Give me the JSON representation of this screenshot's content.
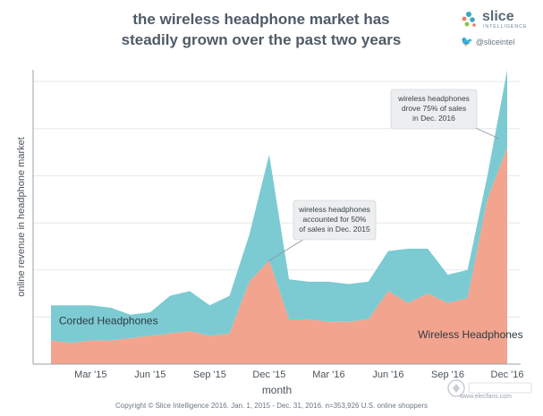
{
  "header": {
    "title_line1": "the wireless headphone market has",
    "title_line2": "steadily grown over the past two years"
  },
  "brand": {
    "name": "slice",
    "sub": "INTELLIGENCE",
    "twitter": "@sliceintel"
  },
  "footer": {
    "copyright": "Copyright © Slice Intelligence 2016. Jan. 1, 2015 - Dec. 31, 2016. n=353,926 U.S. online shoppers"
  },
  "watermark": {
    "site": "www.elecfans.com"
  },
  "chart_data": {
    "type": "area",
    "stacked": true,
    "xlabel": "month",
    "ylabel": "online revenue in headphone market",
    "x": [
      "Jan '15",
      "Feb '15",
      "Mar '15",
      "Apr '15",
      "May '15",
      "Jun '15",
      "Jul '15",
      "Aug '15",
      "Sep '15",
      "Oct '15",
      "Nov '15",
      "Dec '15",
      "Jan '16",
      "Feb '16",
      "Mar '16",
      "Apr '16",
      "May '16",
      "Jun '16",
      "Jul '16",
      "Aug '16",
      "Sep '16",
      "Oct '16",
      "Nov '16",
      "Dec '16"
    ],
    "tick_labels": [
      "Mar '15",
      "Jun '15",
      "Sep '15",
      "Dec '15",
      "Mar '16",
      "Jun '16",
      "Sep '16",
      "Dec '16"
    ],
    "tick_positions": [
      2,
      5,
      8,
      11,
      14,
      17,
      20,
      23
    ],
    "ylim": [
      0,
      6.25
    ],
    "gridlines": [
      1,
      2,
      3,
      4,
      5,
      6
    ],
    "grid": true,
    "series": [
      {
        "name": "Wireless Headphones",
        "color": "#f2a48e",
        "values": [
          0.5,
          0.45,
          0.5,
          0.5,
          0.55,
          0.6,
          0.65,
          0.7,
          0.6,
          0.65,
          1.75,
          2.2,
          0.95,
          0.95,
          0.9,
          0.9,
          0.95,
          1.55,
          1.3,
          1.5,
          1.3,
          1.4,
          3.5,
          4.6
        ]
      },
      {
        "name": "Corded Headphones",
        "color": "#7ccbd2",
        "values": [
          0.75,
          0.8,
          0.75,
          0.7,
          0.5,
          0.5,
          0.8,
          0.85,
          0.65,
          0.8,
          1.0,
          2.25,
          0.85,
          0.8,
          0.85,
          0.8,
          0.8,
          0.85,
          1.15,
          0.95,
          0.6,
          0.6,
          0.5,
          1.65
        ]
      }
    ],
    "series_labels": [
      {
        "name": "Corded Headphones",
        "x": 0.4,
        "y": 0.85
      },
      {
        "name": "Wireless Headphones",
        "x": 18.5,
        "y": 0.55
      }
    ],
    "annotations": [
      {
        "text": [
          "wireless headphones",
          "accounted for 50%",
          "of sales in Dec. 2015"
        ],
        "x": 11,
        "y": 2.2
      },
      {
        "text": [
          "wireless headphones",
          "drove 75% of sales",
          "in Dec. 2016"
        ],
        "x": 22.6,
        "y": 4.8
      }
    ]
  }
}
